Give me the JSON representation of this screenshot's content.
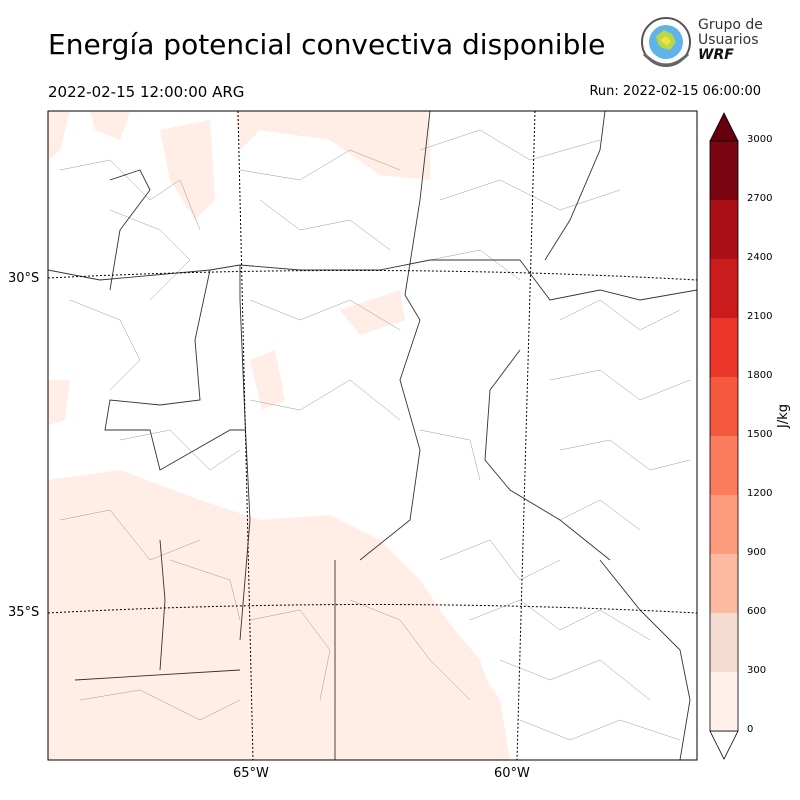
{
  "header": {
    "title": "Energía potencial convectiva disponible",
    "valid_time": "2022-02-15 12:00:00 ARG",
    "run_time": "Run: 2022-02-15 06:00:00"
  },
  "logo": {
    "line1": "Grupo de",
    "line2": "Usuarios",
    "line3": "WRF"
  },
  "map": {
    "lat_labels": [
      "30°S",
      "35°S"
    ],
    "lon_labels": [
      "65°W",
      "60°W"
    ]
  },
  "colorbar": {
    "unit": "J/kg",
    "ticks": [
      "0",
      "300",
      "600",
      "900",
      "1200",
      "1500",
      "1800",
      "2100",
      "2400",
      "2700",
      "3000"
    ],
    "colors": [
      "#fff0ea",
      "#f5dcd2",
      "#fcbba1",
      "#fc9b7e",
      "#fb7c5c",
      "#f5593d",
      "#eb362a",
      "#cb1c1d",
      "#a90f15",
      "#7a0510"
    ],
    "extend": "both"
  },
  "colors": {
    "cape_fill": "#ffede6",
    "boundary": "#333333",
    "department": "#888888"
  }
}
